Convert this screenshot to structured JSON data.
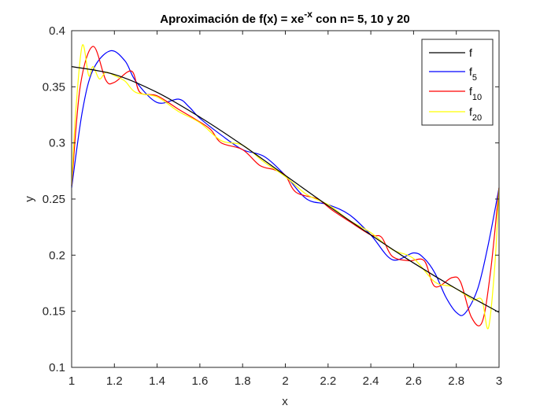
{
  "chart_data": {
    "type": "line",
    "title_main": "Aproximación de f(x) = xe",
    "title_sup": "-x",
    "title_rest": " con n= 5, 10 y 20",
    "xlabel": "x",
    "ylabel": "y",
    "xlim": [
      1,
      3
    ],
    "ylim": [
      0.1,
      0.4
    ],
    "xticks": [
      "1",
      "1.2",
      "1.4",
      "1.6",
      "1.8",
      "2",
      "2.2",
      "2.4",
      "2.6",
      "2.8",
      "3"
    ],
    "yticks": [
      "0.1",
      "0.15",
      "0.2",
      "0.25",
      "0.3",
      "0.35",
      "0.4"
    ],
    "grid": false,
    "legend_position": "top-right",
    "series": [
      {
        "name": "f",
        "legend_base": "f",
        "legend_sub": "",
        "color": "#000000",
        "x": [
          1.0,
          1.2,
          1.4,
          1.6,
          1.8,
          2.0,
          2.2,
          2.4,
          2.6,
          2.8,
          3.0
        ],
        "y": [
          0.368,
          0.361,
          0.345,
          0.323,
          0.298,
          0.271,
          0.244,
          0.218,
          0.193,
          0.17,
          0.149
        ]
      },
      {
        "name": "f5",
        "legend_base": "f",
        "legend_sub": "5",
        "color": "#0000ff",
        "x": [
          1.0,
          1.05,
          1.1,
          1.18,
          1.25,
          1.3,
          1.4,
          1.5,
          1.55,
          1.6,
          1.7,
          1.8,
          1.9,
          2.0,
          2.1,
          2.2,
          2.3,
          2.4,
          2.5,
          2.6,
          2.65,
          2.7,
          2.75,
          2.8,
          2.84,
          2.9,
          2.95,
          3.0
        ],
        "y": [
          0.26,
          0.328,
          0.365,
          0.382,
          0.373,
          0.355,
          0.336,
          0.339,
          0.332,
          0.322,
          0.307,
          0.294,
          0.288,
          0.271,
          0.25,
          0.245,
          0.236,
          0.218,
          0.196,
          0.202,
          0.197,
          0.184,
          0.163,
          0.149,
          0.148,
          0.17,
          0.21,
          0.26
        ]
      },
      {
        "name": "f10",
        "legend_base": "f",
        "legend_sub": "10",
        "color": "#ff0000",
        "x": [
          1.0,
          1.04,
          1.1,
          1.16,
          1.2,
          1.28,
          1.32,
          1.4,
          1.5,
          1.58,
          1.65,
          1.7,
          1.8,
          1.88,
          1.95,
          2.0,
          2.05,
          2.15,
          2.22,
          2.3,
          2.4,
          2.45,
          2.5,
          2.58,
          2.65,
          2.7,
          2.78,
          2.82,
          2.87,
          2.92,
          2.96,
          3.0
        ],
        "y": [
          0.262,
          0.35,
          0.386,
          0.356,
          0.354,
          0.364,
          0.345,
          0.342,
          0.33,
          0.321,
          0.312,
          0.3,
          0.294,
          0.28,
          0.276,
          0.271,
          0.256,
          0.25,
          0.24,
          0.23,
          0.218,
          0.216,
          0.199,
          0.195,
          0.195,
          0.172,
          0.18,
          0.176,
          0.145,
          0.14,
          0.185,
          0.26
        ]
      },
      {
        "name": "f20",
        "legend_base": "f",
        "legend_sub": "20",
        "color": "#ffff00",
        "x": [
          1.0,
          1.02,
          1.05,
          1.08,
          1.1,
          1.13,
          1.16,
          1.2,
          1.25,
          1.3,
          1.4,
          1.5,
          1.6,
          1.7,
          1.8,
          1.9,
          2.0,
          2.1,
          2.2,
          2.3,
          2.4,
          2.5,
          2.6,
          2.7,
          2.78,
          2.84,
          2.88,
          2.92,
          2.95,
          2.98,
          3.0
        ],
        "y": [
          0.262,
          0.33,
          0.387,
          0.36,
          0.368,
          0.357,
          0.363,
          0.36,
          0.355,
          0.345,
          0.341,
          0.328,
          0.318,
          0.302,
          0.298,
          0.283,
          0.27,
          0.254,
          0.245,
          0.231,
          0.22,
          0.205,
          0.197,
          0.176,
          0.172,
          0.165,
          0.16,
          0.16,
          0.135,
          0.19,
          0.26
        ]
      }
    ]
  }
}
